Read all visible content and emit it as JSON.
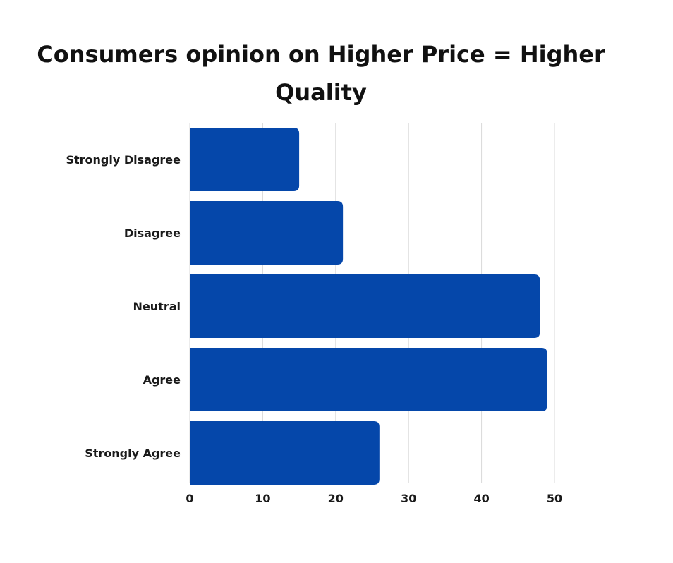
{
  "chart_data": {
    "type": "bar",
    "orientation": "horizontal",
    "title": "Consumers opinion on Higher Price = Higher Quality",
    "xlabel": "",
    "ylabel": "",
    "categories": [
      "Strongly Disagree",
      "Disagree",
      "Neutral",
      "Agree",
      "Strongly Agree"
    ],
    "values": [
      15,
      21,
      48,
      49,
      26
    ],
    "xlim": [
      0,
      50
    ],
    "xticks": [
      0,
      10,
      20,
      30,
      40,
      50
    ],
    "grid": "vertical",
    "legend": "none",
    "bar_color": "#0547AA",
    "grid_color": "#d9d9d9"
  }
}
